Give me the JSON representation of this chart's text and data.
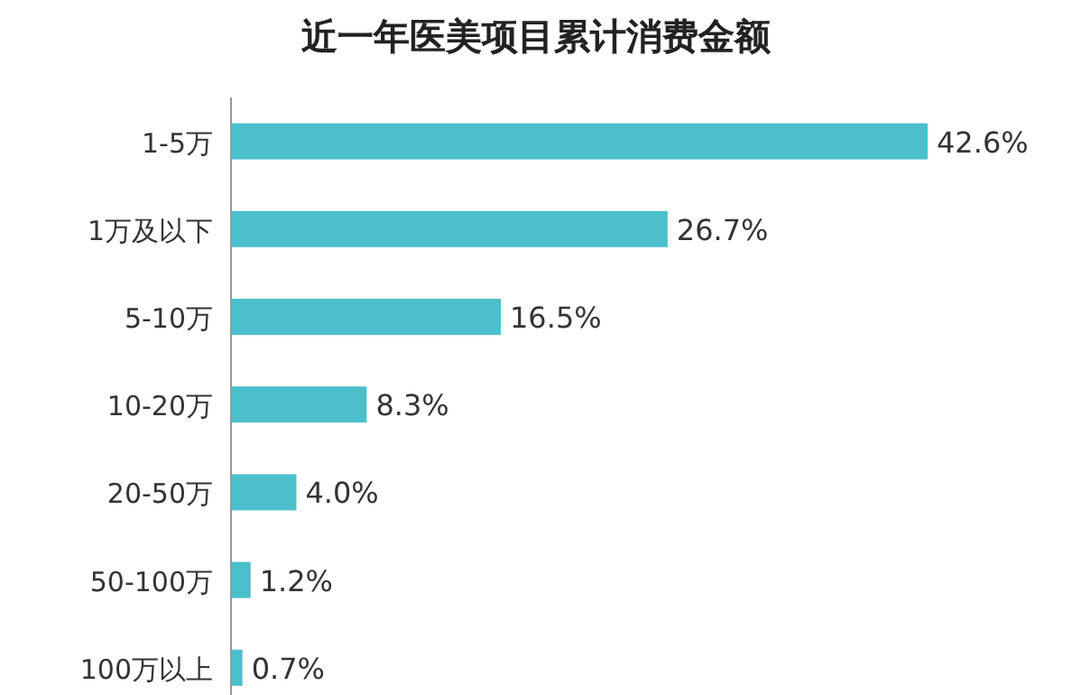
{
  "chart_data": {
    "type": "bar",
    "orientation": "horizontal",
    "title": "近一年医美项目累计消费金额",
    "categories": [
      "1-5万",
      "1万及以下",
      "5-10万",
      "10-20万",
      "20-50万",
      "50-100万",
      "100万以上"
    ],
    "values": [
      42.6,
      26.7,
      16.5,
      8.3,
      4.0,
      1.2,
      0.7
    ],
    "value_labels": [
      "42.6%",
      "26.7%",
      "16.5%",
      "8.3%",
      "4.0%",
      "1.2%",
      "0.7%"
    ],
    "color": "#4bbfcc"
  }
}
